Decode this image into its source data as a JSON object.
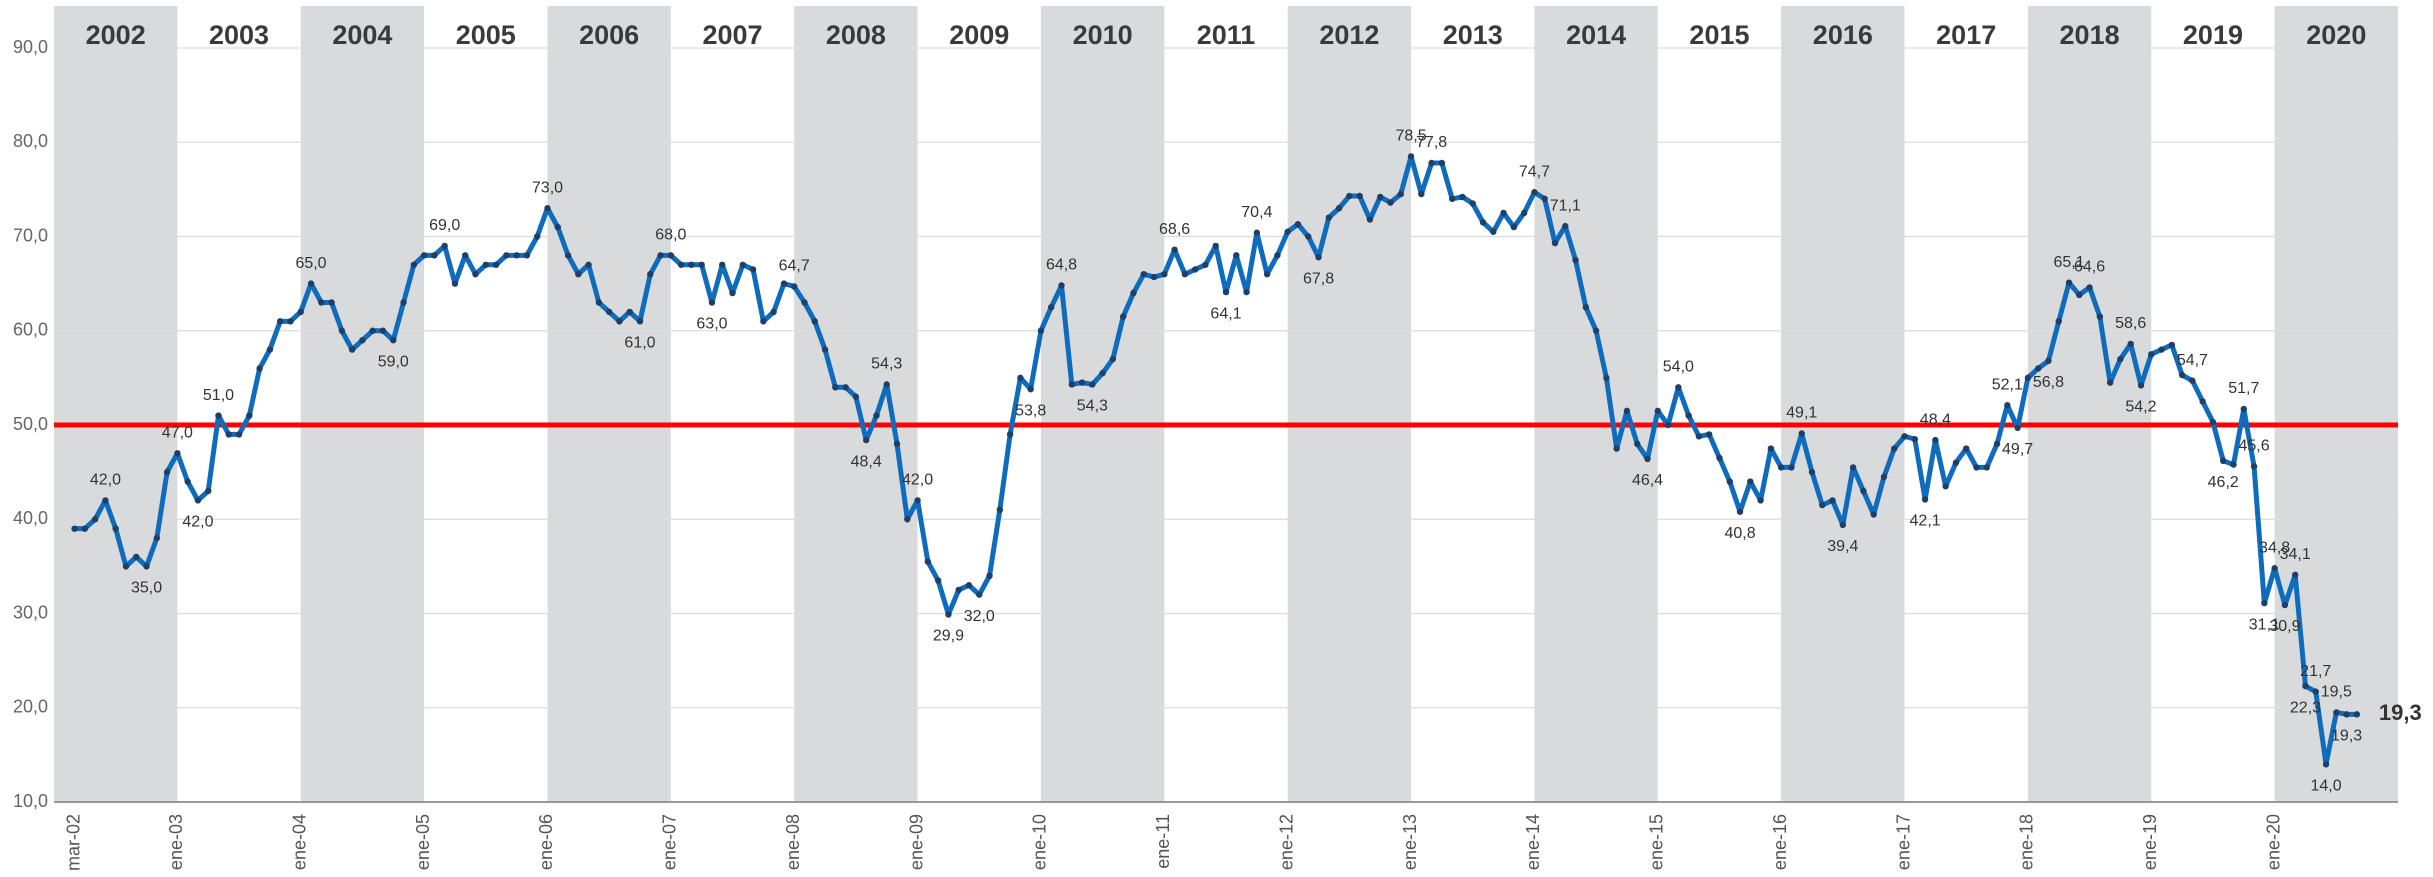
{
  "chart_data": {
    "type": "line",
    "categories": [
      "mar-02",
      null,
      null,
      null,
      null,
      null,
      null,
      null,
      null,
      null,
      "ene-03",
      null,
      null,
      null,
      null,
      null,
      null,
      null,
      null,
      null,
      null,
      null,
      "ene-04",
      null,
      null,
      null,
      null,
      null,
      null,
      null,
      null,
      null,
      null,
      null,
      "ene-05",
      null,
      null,
      null,
      null,
      null,
      null,
      null,
      null,
      null,
      null,
      null,
      "ene-06",
      null,
      null,
      null,
      null,
      null,
      null,
      null,
      null,
      null,
      null,
      null,
      "ene-07",
      null,
      null,
      null,
      null,
      null,
      null,
      null,
      null,
      null,
      null,
      null,
      "ene-08",
      null,
      null,
      null,
      null,
      null,
      null,
      null,
      null,
      null,
      null,
      null,
      "ene-09",
      null,
      null,
      null,
      null,
      null,
      null,
      null,
      null,
      null,
      null,
      null,
      "ene-10",
      null,
      null,
      null,
      null,
      null,
      null,
      null,
      null,
      null,
      null,
      null,
      "ene-11",
      null,
      null,
      null,
      null,
      null,
      null,
      null,
      null,
      null,
      null,
      null,
      "ene-12",
      null,
      null,
      null,
      null,
      null,
      null,
      null,
      null,
      null,
      null,
      null,
      "ene-13",
      null,
      null,
      null,
      null,
      null,
      null,
      null,
      null,
      null,
      null,
      null,
      "ene-14",
      null,
      null,
      null,
      null,
      null,
      null,
      null,
      null,
      null,
      null,
      null,
      "ene-15",
      null,
      null,
      null,
      null,
      null,
      null,
      null,
      null,
      null,
      null,
      null,
      "ene-16",
      null,
      null,
      null,
      null,
      null,
      null,
      null,
      null,
      null,
      null,
      null,
      "ene-17",
      null,
      null,
      null,
      null,
      null,
      null,
      null,
      null,
      null,
      null,
      null,
      "ene-18",
      null,
      null,
      null,
      null,
      null,
      null,
      null,
      null,
      null,
      null,
      null,
      "ene-19",
      null,
      null,
      null,
      null,
      null,
      null,
      null,
      null,
      null,
      null,
      null,
      "ene-20",
      null,
      null,
      null,
      null,
      null,
      null,
      null,
      null
    ],
    "values": [
      39,
      39,
      40,
      42,
      39,
      35,
      36,
      35,
      38,
      45,
      47,
      44,
      42,
      43,
      51,
      49,
      49,
      51,
      56,
      58,
      61,
      61,
      62,
      65,
      63,
      63,
      60,
      58,
      59,
      60,
      60,
      59,
      63,
      67,
      68,
      68,
      69,
      65,
      68,
      66,
      67,
      67,
      68,
      68,
      68,
      70,
      73,
      71,
      68,
      66,
      67,
      63,
      62,
      61,
      62,
      61,
      66,
      68,
      68,
      67,
      67,
      67,
      63,
      67,
      64,
      67,
      66.5,
      61,
      62,
      65,
      64.7,
      63,
      61,
      58,
      54,
      54,
      53,
      48.4,
      51,
      54.3,
      48,
      40,
      42,
      35.5,
      33.5,
      29.9,
      32.5,
      33,
      32,
      34,
      41,
      49,
      55,
      53.8,
      60,
      62.5,
      64.8,
      54.3,
      54.5,
      54.3,
      55.5,
      57,
      61.5,
      64,
      66,
      65.7,
      66,
      68.6,
      66,
      66.5,
      67,
      69,
      64.1,
      68,
      64.1,
      70.4,
      66,
      68,
      70.5,
      71.3,
      70,
      67.8,
      72,
      73,
      74.3,
      74.3,
      71.8,
      74.2,
      73.6,
      74.5,
      78.5,
      74.5,
      77.8,
      77.8,
      74,
      74.2,
      73.5,
      71.5,
      70.5,
      72.5,
      71,
      72.5,
      74.7,
      74,
      69.3,
      71.1,
      67.5,
      62.5,
      60,
      55,
      47.5,
      51.5,
      48,
      46.4,
      51.5,
      50,
      54,
      51,
      48.8,
      49,
      46.5,
      44,
      40.8,
      44,
      42,
      47.5,
      45.5,
      45.5,
      49.1,
      45,
      41.5,
      42,
      39.4,
      45.5,
      43,
      40.5,
      44.5,
      47.5,
      48.8,
      48.5,
      42.1,
      48.4,
      43.5,
      46,
      47.5,
      45.5,
      45.5,
      48,
      52.1,
      49.7,
      55,
      56,
      56.8,
      61,
      65.1,
      63.8,
      64.6,
      61.5,
      54.5,
      57,
      58.6,
      54.2,
      57.5,
      58,
      58.5,
      55.3,
      54.7,
      52.5,
      50.3,
      46.2,
      45.8,
      51.7,
      45.6,
      31.1,
      34.8,
      30.9,
      34.1,
      22.3,
      21.7,
      14,
      19.5,
      19.3,
      19.3
    ],
    "value_labels": [
      null,
      null,
      null,
      "42,0",
      null,
      null,
      null,
      "35,0",
      null,
      null,
      "47,0",
      null,
      "42,0",
      null,
      "51,0",
      null,
      null,
      null,
      null,
      null,
      null,
      null,
      null,
      "65,0",
      null,
      null,
      null,
      null,
      null,
      null,
      null,
      "59,0",
      null,
      null,
      null,
      null,
      "69,0",
      null,
      null,
      null,
      null,
      null,
      null,
      null,
      null,
      null,
      "73,0",
      null,
      null,
      null,
      null,
      null,
      null,
      null,
      null,
      "61,0",
      null,
      null,
      "68,0",
      null,
      null,
      null,
      "63,0",
      null,
      null,
      null,
      null,
      null,
      null,
      null,
      "64,7",
      null,
      null,
      null,
      null,
      null,
      null,
      "48,4",
      null,
      "54,3",
      null,
      null,
      "42,0",
      null,
      null,
      "29,9",
      null,
      null,
      "32,0",
      null,
      null,
      null,
      null,
      "53,8",
      null,
      null,
      "64,8",
      null,
      null,
      "54,3",
      null,
      null,
      null,
      null,
      null,
      null,
      null,
      "68,6",
      null,
      null,
      null,
      null,
      "64,1",
      null,
      null,
      "70,4",
      null,
      null,
      null,
      null,
      null,
      "67,8",
      null,
      null,
      null,
      null,
      null,
      null,
      null,
      null,
      "78,5",
      null,
      "77,8",
      null,
      null,
      null,
      null,
      null,
      null,
      null,
      null,
      null,
      "74,7",
      null,
      null,
      "71,1",
      null,
      null,
      null,
      null,
      null,
      null,
      null,
      "46,4",
      null,
      null,
      "54,0",
      null,
      null,
      null,
      null,
      null,
      "40,8",
      null,
      null,
      null,
      null,
      null,
      "49,1",
      null,
      null,
      null,
      "39,4",
      null,
      null,
      null,
      null,
      null,
      null,
      null,
      "42,1",
      "48,4",
      null,
      null,
      null,
      null,
      null,
      null,
      "52,1",
      "49,7",
      null,
      null,
      "56,8",
      null,
      "65,1",
      null,
      "64,6",
      null,
      null,
      null,
      "58,6",
      "54,2",
      null,
      null,
      null,
      null,
      "54,7",
      null,
      null,
      "46,2",
      null,
      "51,7",
      "45,6",
      "31,1",
      "34,8",
      "30,9",
      "34,1",
      "22,3",
      "21,7",
      "14,0",
      "19,5",
      "19,3",
      "19,3"
    ],
    "color": "#0f6cbd",
    "marker_color": "#1f3f66",
    "year_bands": [
      "2002",
      "2003",
      "2004",
      "2005",
      "2006",
      "2007",
      "2008",
      "2009",
      "2010",
      "2011",
      "2012",
      "2013",
      "2014",
      "2015",
      "2016",
      "2017",
      "2018",
      "2019",
      "2020"
    ],
    "reference_line": {
      "value": 50,
      "color": "#ff0000"
    },
    "ylim": [
      10,
      90
    ],
    "yticks": [
      {
        "value": 10,
        "label": "10,0"
      },
      {
        "value": 20,
        "label": "20,0"
      },
      {
        "value": 30,
        "label": "30,0"
      },
      {
        "value": 40,
        "label": "40,0"
      },
      {
        "value": 50,
        "label": "50,0"
      },
      {
        "value": 60,
        "label": "60,0"
      },
      {
        "value": 70,
        "label": "70,0"
      },
      {
        "value": 80,
        "label": "80,0"
      },
      {
        "value": 90,
        "label": "90,0"
      }
    ],
    "grid": true
  }
}
